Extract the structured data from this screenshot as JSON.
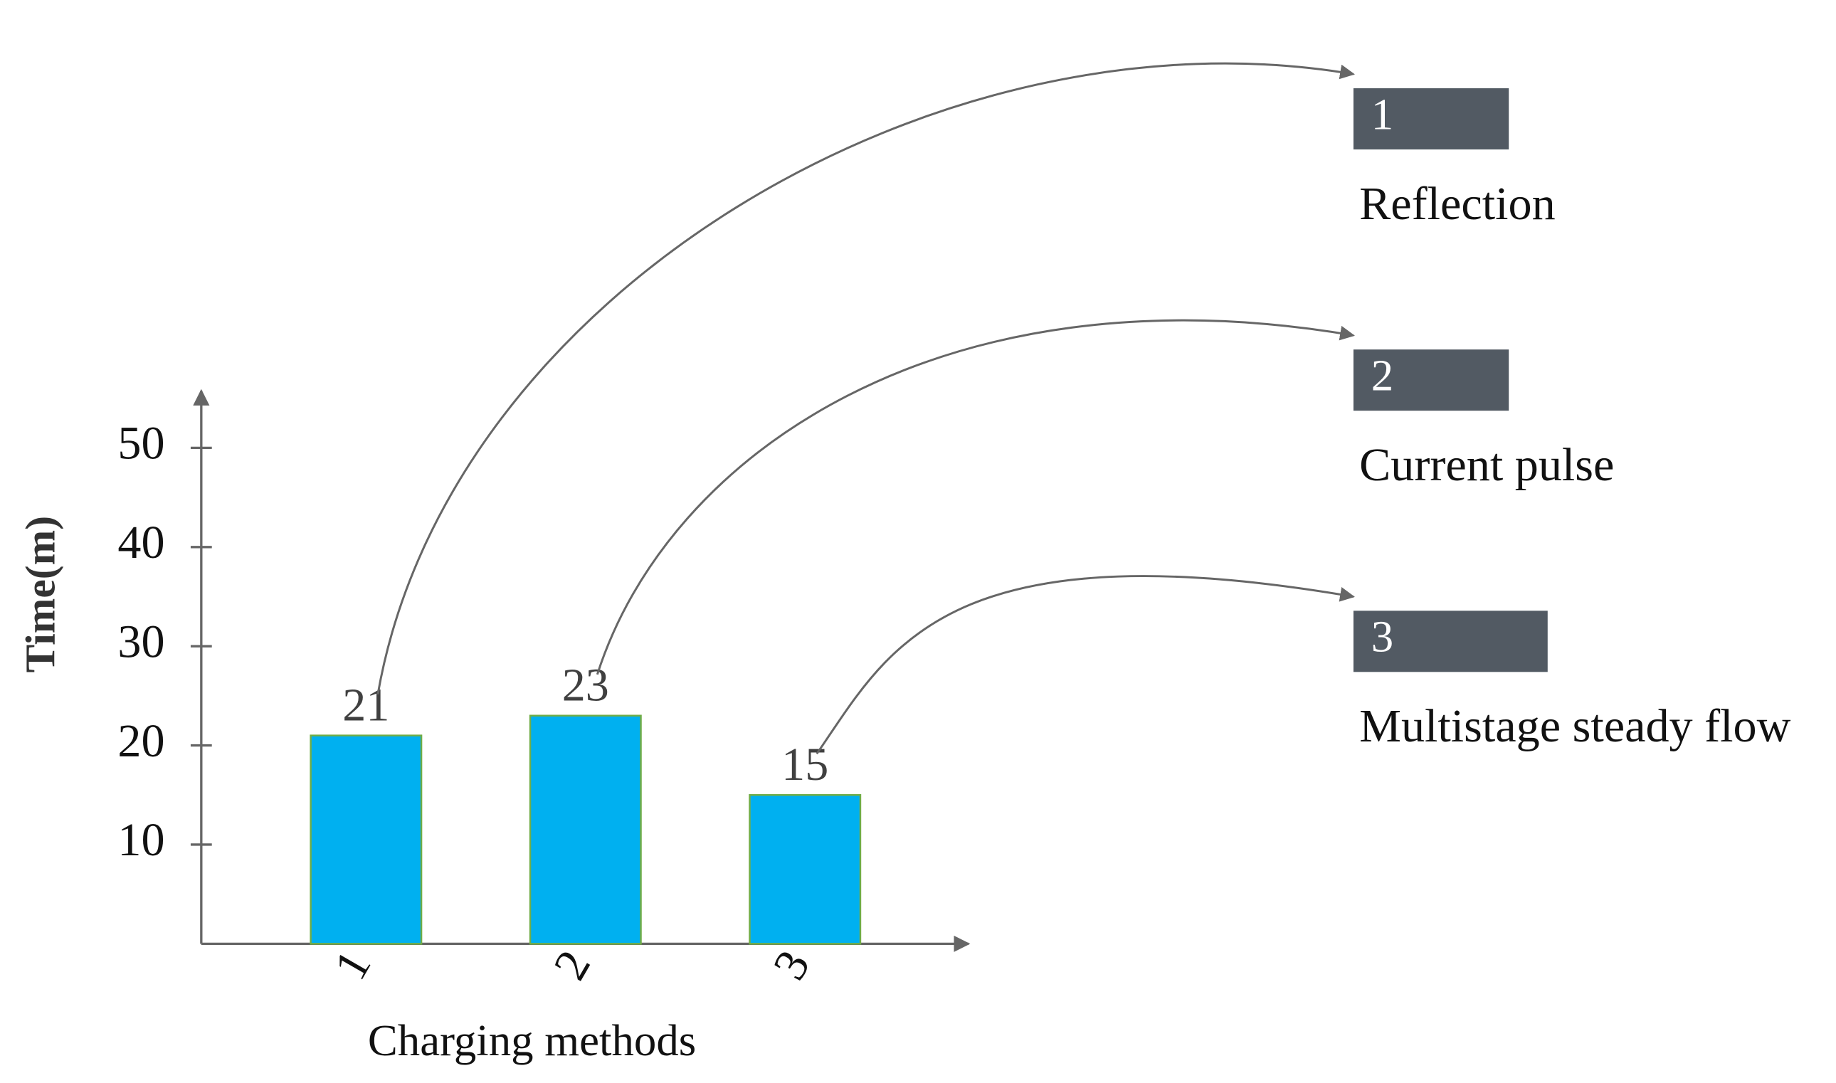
{
  "chart_data": {
    "type": "bar",
    "categories": [
      "1",
      "2",
      "3"
    ],
    "values": [
      21,
      23,
      15
    ],
    "color": "#00b0f0",
    "ylim": [
      0,
      56
    ],
    "yticks": [
      10,
      20,
      30,
      40,
      50
    ],
    "y_label": "Time(m)",
    "x_label": "Charging methods",
    "annotations": [
      {
        "label": "1",
        "text": "Reflection"
      },
      {
        "label": "2",
        "text": "Current pulse"
      },
      {
        "label": "3",
        "text": "Multistage steady flow"
      }
    ]
  }
}
